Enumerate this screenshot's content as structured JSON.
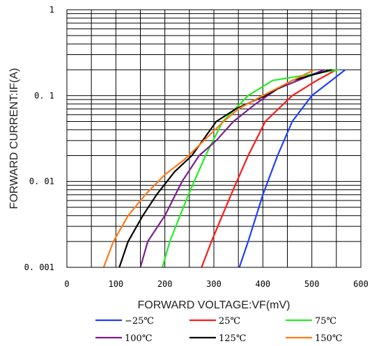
{
  "chart_data": {
    "type": "line",
    "xlabel": "FORWARD VOLTAGE:VF(mV)",
    "ylabel": "FORWARD CURRENT:IF(A)",
    "xlim": [
      0,
      600
    ],
    "ylim": [
      0.001,
      1
    ],
    "y_scale": "log",
    "x_ticks": [
      0,
      100,
      200,
      300,
      400,
      500,
      600
    ],
    "x_tick_labels": [
      "0",
      "100",
      "200",
      "300",
      "400",
      "500",
      "600"
    ],
    "y_ticks": [
      0.001,
      0.01,
      0.1,
      1
    ],
    "y_tick_labels": [
      "0. 001",
      "0. 01",
      "0. 1",
      "1"
    ],
    "grid": true,
    "legend_position": "bottom",
    "series": [
      {
        "name": "−25℃",
        "color": "#1f3fff",
        "x": [
          352,
          370,
          400,
          430,
          460,
          500,
          540,
          568
        ],
        "y": [
          0.001,
          0.002,
          0.007,
          0.02,
          0.05,
          0.1,
          0.15,
          0.2
        ]
      },
      {
        "name": "25℃",
        "color": "#ff1a1a",
        "x": [
          275,
          295,
          335,
          370,
          405,
          460,
          510,
          550
        ],
        "y": [
          0.001,
          0.002,
          0.007,
          0.02,
          0.05,
          0.1,
          0.15,
          0.2
        ]
      },
      {
        "name": "75℃",
        "color": "#22ee22",
        "x": [
          195,
          210,
          248,
          283,
          318,
          370,
          420,
          555
        ],
        "y": [
          0.001,
          0.002,
          0.007,
          0.02,
          0.05,
          0.1,
          0.15,
          0.2
        ]
      },
      {
        "name": "100℃",
        "color": "#7a1f8f",
        "x": [
          150,
          165,
          200,
          235,
          270,
          305,
          340,
          385,
          430,
          525
        ],
        "y": [
          0.001,
          0.002,
          0.004,
          0.01,
          0.02,
          0.03,
          0.05,
          0.08,
          0.12,
          0.2
        ]
      },
      {
        "name": "125℃",
        "color": "#000000",
        "x": [
          107,
          125,
          155,
          183,
          220,
          255,
          305,
          345,
          405,
          460,
          540
        ],
        "y": [
          0.001,
          0.002,
          0.004,
          0.007,
          0.013,
          0.02,
          0.05,
          0.07,
          0.1,
          0.15,
          0.2
        ]
      },
      {
        "name": "150℃",
        "color": "#ff7a1a",
        "x": [
          75,
          95,
          125,
          160,
          200,
          240,
          280,
          320,
          350,
          400,
          450,
          505
        ],
        "y": [
          0.001,
          0.002,
          0.004,
          0.007,
          0.012,
          0.018,
          0.03,
          0.05,
          0.07,
          0.1,
          0.14,
          0.2
        ]
      }
    ]
  }
}
